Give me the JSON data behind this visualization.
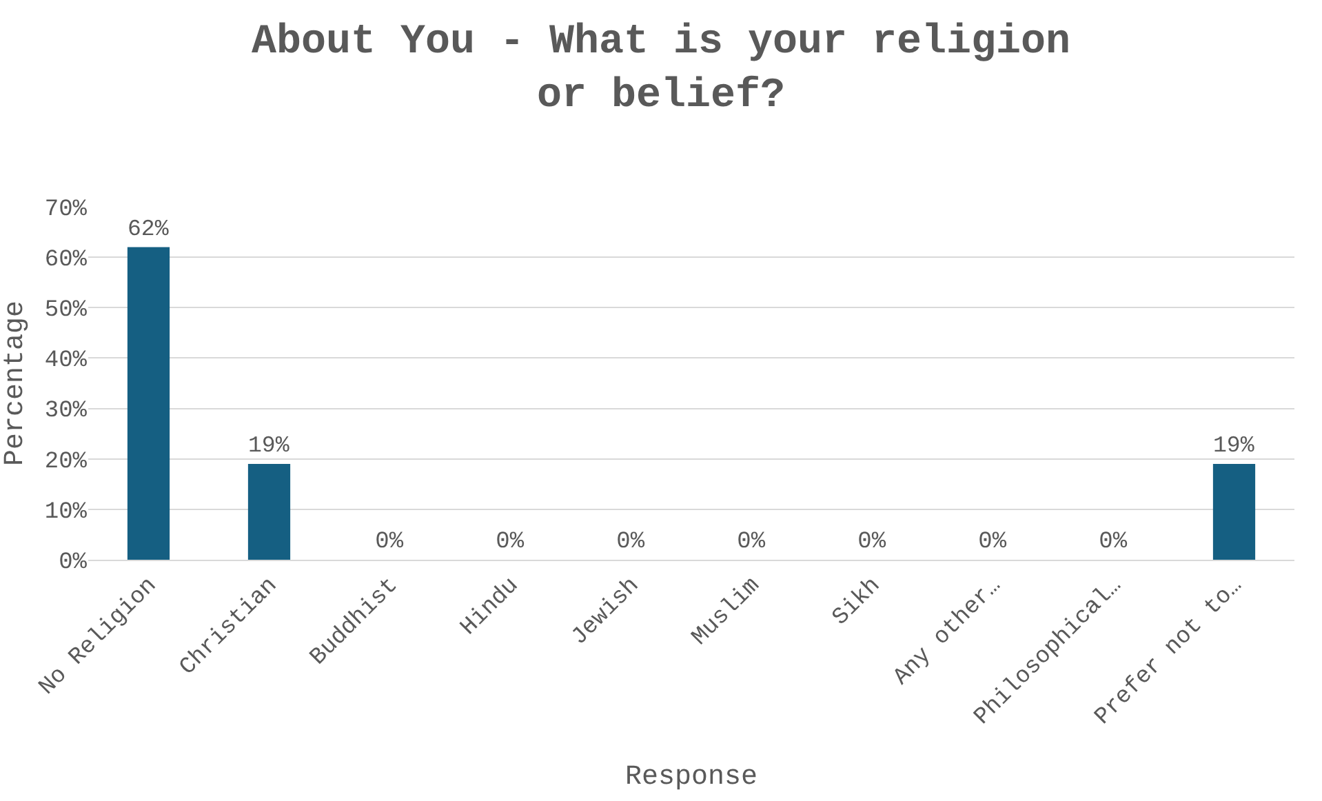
{
  "chart_data": {
    "type": "bar",
    "title": "About You - What is your religion or belief?",
    "xlabel": "Response",
    "ylabel": "Percentage",
    "categories": [
      "No Religion",
      "Christian",
      "Buddhist",
      "Hindu",
      "Jewish",
      "Muslim",
      "Sikh",
      "Any other…",
      "Philosophical…",
      "Prefer not to…"
    ],
    "values": [
      62,
      19,
      0,
      0,
      0,
      0,
      0,
      0,
      0,
      19
    ],
    "value_labels": [
      "62%",
      "19%",
      "0%",
      "0%",
      "0%",
      "0%",
      "0%",
      "0%",
      "0%",
      "19%"
    ],
    "color": "#155f82",
    "ylim": [
      0,
      70
    ],
    "yticks": [
      {
        "value": 0,
        "label": "0%"
      },
      {
        "value": 10,
        "label": "10%"
      },
      {
        "value": 20,
        "label": "20%"
      },
      {
        "value": 30,
        "label": "30%"
      },
      {
        "value": 40,
        "label": "40%"
      },
      {
        "value": 50,
        "label": "50%"
      },
      {
        "value": 60,
        "label": "60%"
      },
      {
        "value": 70,
        "label": "70%"
      }
    ],
    "grid": "y"
  }
}
